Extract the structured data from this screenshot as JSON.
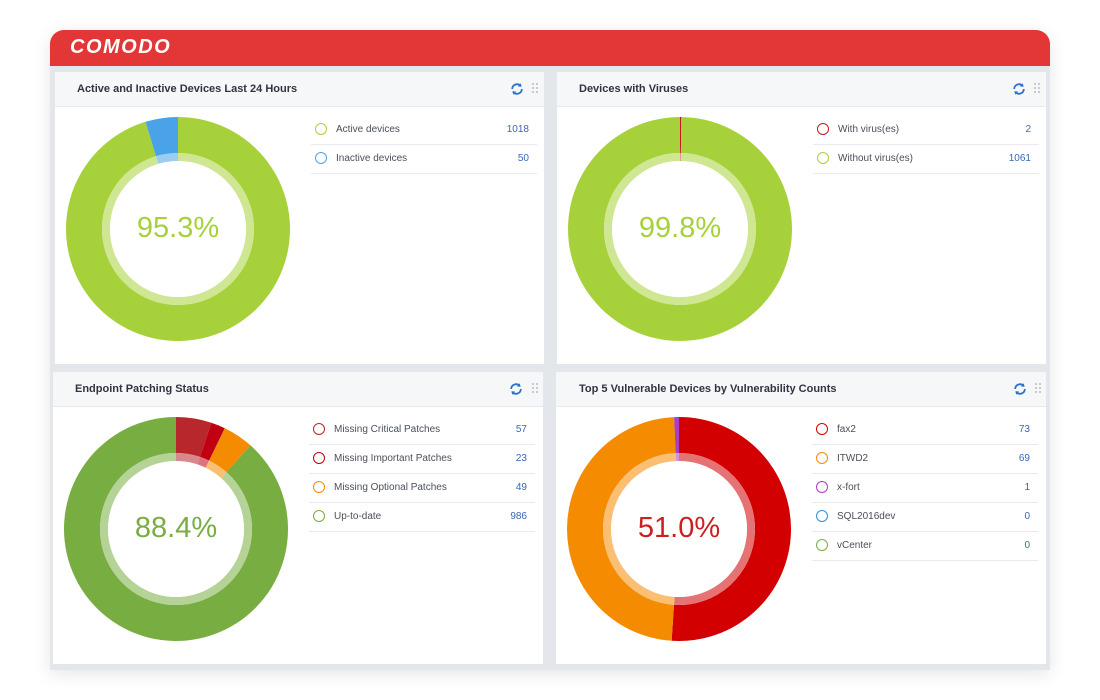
{
  "app": {
    "brand": "COMODO"
  },
  "panels": [
    {
      "title": "Active and Inactive Devices Last 24 Hours",
      "center_value": "95.3%",
      "center_color": "#a7d13a",
      "inner_ring_color": "#d4ea9a",
      "items": [
        {
          "label": "Active devices",
          "value": "1018",
          "color": "#a7d13a"
        },
        {
          "label": "Inactive devices",
          "value": "50",
          "color": "#4aa3e8"
        }
      ]
    },
    {
      "title": "Devices with Viruses",
      "center_value": "99.8%",
      "center_color": "#a7d13a",
      "inner_ring_color": "#d4ea9a",
      "items": [
        {
          "label": "With virus(es)",
          "value": "2",
          "color": "#c8161d"
        },
        {
          "label": "Without virus(es)",
          "value": "1061",
          "color": "#a7d13a"
        }
      ]
    },
    {
      "title": "Endpoint Patching Status",
      "center_value": "88.4%",
      "center_color": "#78ad42",
      "inner_ring_color": "#cfe6a3",
      "items": [
        {
          "label": "Missing Critical Patches",
          "value": "57",
          "color": "#b7272b"
        },
        {
          "label": "Missing Important Patches",
          "value": "23",
          "color": "#c00012"
        },
        {
          "label": "Missing Optional Patches",
          "value": "49",
          "color": "#f58b00"
        },
        {
          "label": "Up-to-date",
          "value": "986",
          "color": "#78ad42"
        }
      ]
    },
    {
      "title": "Top 5 Vulnerable Devices by Vulnerability Counts",
      "center_value": "51.0%",
      "center_color": "#cc1f1f",
      "inner_ring_color": "#ee5555",
      "items": [
        {
          "label": "fax2",
          "value": "73",
          "color": "#d20000"
        },
        {
          "label": "ITWD2",
          "value": "69",
          "color": "#f58b00"
        },
        {
          "label": "x-fort",
          "value": "1",
          "color": "#a83ec0"
        },
        {
          "label": "SQL2016dev",
          "value": "0",
          "color": "#2f8fd8"
        },
        {
          "label": "vCenter",
          "value": "0",
          "color": "#78ad42"
        }
      ]
    }
  ]
}
